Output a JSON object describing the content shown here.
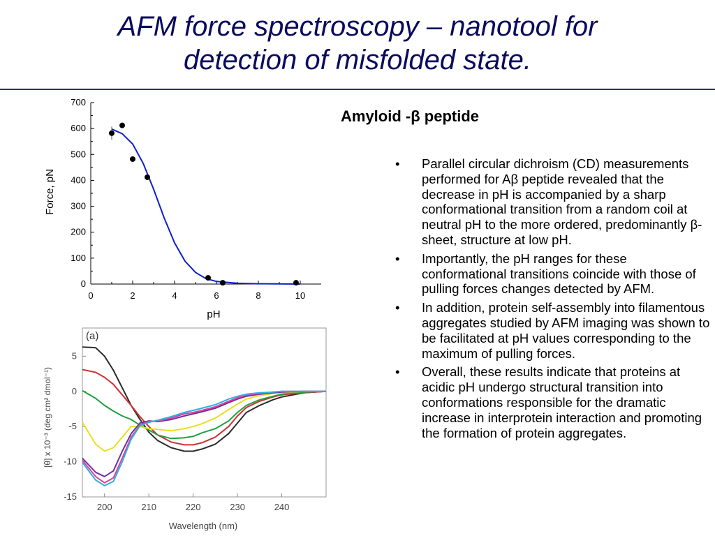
{
  "slide": {
    "title_line1": "AFM force spectroscopy – nanotool for",
    "title_line2": "detection of misfolded state.",
    "subheading": "Amyloid -β peptide",
    "bullet_marker": "•",
    "bullets": [
      "Parallel circular dichroism (CD) measurements performed for Aβ peptide revealed that the decrease in pH is accompanied by a sharp conformational transition from a random coil at neutral pH to the more ordered, predominantly β-sheet, structure at low pH.",
      "Importantly, the pH ranges for these conformational transitions coincide with those of pulling forces changes detected by AFM.",
      "In addition, protein self-assembly into filamentous aggregates studied by AFM imaging was shown to be facilitated at pH values corresponding to the maximum of pulling forces.",
      "Overall, these results indicate that proteins at acidic pH undergo structural transition into conformations responsible for the dramatic increase in interprotein interaction and promoting the formation of protein aggregates."
    ]
  },
  "chart_data": [
    {
      "type": "scatter",
      "title": "",
      "xlabel": "pH",
      "ylabel": "Force, pN",
      "xlim": [
        0,
        11
      ],
      "ylim": [
        0,
        700
      ],
      "xticks": [
        "0",
        "2",
        "4",
        "6",
        "8",
        "10"
      ],
      "yticks": [
        "0",
        "100",
        "200",
        "300",
        "400",
        "500",
        "600",
        "700"
      ],
      "grid": false,
      "points": [
        {
          "x": 1.0,
          "y": 582
        },
        {
          "x": 1.5,
          "y": 612
        },
        {
          "x": 2.0,
          "y": 482
        },
        {
          "x": 2.7,
          "y": 412
        },
        {
          "x": 5.6,
          "y": 24
        },
        {
          "x": 6.3,
          "y": 5
        },
        {
          "x": 9.8,
          "y": 5
        }
      ],
      "fit_curve": {
        "color": "#1020c8",
        "points": [
          [
            1.0,
            598
          ],
          [
            1.5,
            580
          ],
          [
            2.0,
            540
          ],
          [
            2.5,
            466
          ],
          [
            3.0,
            366
          ],
          [
            3.5,
            256
          ],
          [
            4.0,
            159
          ],
          [
            4.5,
            88
          ],
          [
            5.0,
            45
          ],
          [
            5.5,
            21
          ],
          [
            6.0,
            10
          ],
          [
            7.0,
            3
          ],
          [
            8.0,
            1
          ],
          [
            10.0,
            0
          ]
        ]
      },
      "marker_color": "#000000"
    },
    {
      "type": "line",
      "panel_label": "(a)",
      "xlabel": "Wavelength (nm)",
      "ylabel": "[θ] x 10⁻³ (deg cm² dmol⁻¹)",
      "xlim": [
        195,
        250
      ],
      "ylim": [
        -15,
        9
      ],
      "xticks": [
        "200",
        "210",
        "220",
        "230",
        "240"
      ],
      "yticks": [
        "5",
        "0",
        "-5",
        "-10",
        "-15"
      ],
      "grid": false,
      "x": [
        195,
        198,
        200,
        202,
        204,
        206,
        208,
        210,
        212,
        215,
        218,
        220,
        222,
        225,
        228,
        230,
        232,
        235,
        238,
        240,
        245,
        250
      ],
      "series": [
        {
          "color": "#2b2b2b",
          "values": [
            6.3,
            6.2,
            5.0,
            3.0,
            0.5,
            -2.0,
            -4.0,
            -5.8,
            -7.0,
            -8.0,
            -8.5,
            -8.5,
            -8.2,
            -7.5,
            -6.0,
            -4.5,
            -3.0,
            -2.0,
            -1.2,
            -0.8,
            -0.2,
            0.0
          ]
        },
        {
          "color": "#d03030",
          "values": [
            3.1,
            2.7,
            2.0,
            1.0,
            -0.5,
            -2.0,
            -3.6,
            -5.0,
            -6.2,
            -7.2,
            -7.6,
            -7.6,
            -7.3,
            -6.5,
            -5.0,
            -3.5,
            -2.3,
            -1.4,
            -0.8,
            -0.5,
            -0.2,
            0.0
          ]
        },
        {
          "color": "#20a040",
          "values": [
            0.1,
            -1.0,
            -2.0,
            -2.8,
            -3.5,
            -4.0,
            -4.8,
            -5.5,
            -6.2,
            -6.7,
            -6.6,
            -6.4,
            -5.9,
            -5.3,
            -4.2,
            -3.0,
            -2.0,
            -1.2,
            -0.7,
            -0.4,
            -0.1,
            0.0
          ]
        },
        {
          "color": "#e8e020",
          "values": [
            -4.4,
            -7.5,
            -8.5,
            -8.0,
            -6.5,
            -5.0,
            -5.0,
            -5.3,
            -5.4,
            -5.6,
            -5.3,
            -5.0,
            -4.6,
            -3.8,
            -2.6,
            -1.8,
            -1.1,
            -0.6,
            -0.3,
            -0.2,
            0.0,
            0.0
          ]
        },
        {
          "color": "#7030a0",
          "values": [
            -9.5,
            -11.5,
            -12.1,
            -11.3,
            -8.5,
            -6.0,
            -4.5,
            -4.2,
            -4.3,
            -4.0,
            -3.5,
            -3.2,
            -2.9,
            -2.4,
            -1.6,
            -1.1,
            -0.7,
            -0.4,
            -0.2,
            -0.1,
            0.0,
            0.0
          ]
        },
        {
          "color": "#e0409a",
          "values": [
            -9.8,
            -12.1,
            -13.0,
            -12.3,
            -9.5,
            -6.5,
            -4.8,
            -4.3,
            -4.2,
            -3.8,
            -3.2,
            -3.0,
            -2.7,
            -2.2,
            -1.4,
            -0.9,
            -0.5,
            -0.3,
            -0.1,
            0.0,
            0.0,
            0.0
          ]
        },
        {
          "color": "#30b0e0",
          "values": [
            -10.1,
            -12.6,
            -13.4,
            -12.8,
            -10.0,
            -6.8,
            -4.9,
            -4.4,
            -4.1,
            -3.6,
            -3.0,
            -2.7,
            -2.4,
            -1.9,
            -1.1,
            -0.7,
            -0.4,
            -0.2,
            -0.1,
            0.0,
            0.0,
            0.0
          ]
        }
      ]
    }
  ]
}
